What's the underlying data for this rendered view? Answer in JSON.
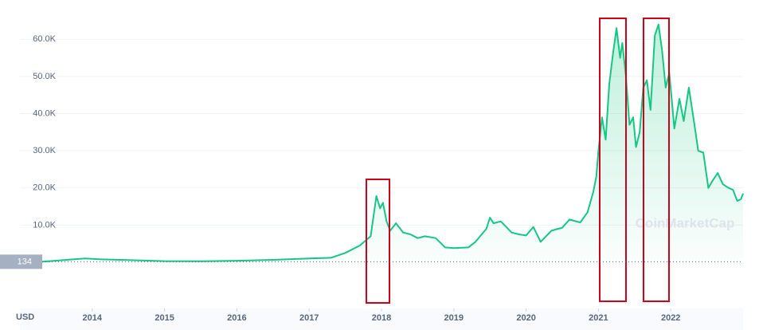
{
  "chart_data": {
    "type": "line",
    "color": "#16c784",
    "grid": true,
    "y_unit_label": "USD",
    "watermark": "CoinMarketCap",
    "start_price": 134,
    "xlim": [
      2013,
      2023
    ],
    "xticks": [
      2014,
      2015,
      2016,
      2017,
      2018,
      2019,
      2020,
      2021,
      2022
    ],
    "ylim": [
      0,
      65000
    ],
    "yticks": [
      {
        "value": 10000,
        "label": "10.0K"
      },
      {
        "value": 20000,
        "label": "20.0K"
      },
      {
        "value": 30000,
        "label": "30.0K"
      },
      {
        "value": 40000,
        "label": "40.0K"
      },
      {
        "value": 50000,
        "label": "50.0K"
      },
      {
        "value": 60000,
        "label": "60.0K"
      }
    ],
    "x": [
      2013.0,
      2013.3,
      2013.9,
      2014.1,
      2014.5,
      2015.0,
      2015.5,
      2016.0,
      2016.5,
      2017.0,
      2017.3,
      2017.5,
      2017.7,
      2017.85,
      2017.93,
      2017.98,
      2018.02,
      2018.07,
      2018.12,
      2018.2,
      2018.3,
      2018.4,
      2018.5,
      2018.6,
      2018.75,
      2018.88,
      2019.0,
      2019.2,
      2019.3,
      2019.45,
      2019.5,
      2019.55,
      2019.65,
      2019.8,
      2019.9,
      2020.0,
      2020.1,
      2020.2,
      2020.35,
      2020.5,
      2020.6,
      2020.75,
      2020.85,
      2020.93,
      2020.97,
      2021.0,
      2021.05,
      2021.1,
      2021.15,
      2021.2,
      2021.25,
      2021.3,
      2021.33,
      2021.38,
      2021.43,
      2021.48,
      2021.52,
      2021.57,
      2021.62,
      2021.67,
      2021.72,
      2021.78,
      2021.83,
      2021.88,
      2021.93,
      2021.98,
      2022.05,
      2022.12,
      2022.18,
      2022.25,
      2022.32,
      2022.38,
      2022.45,
      2022.52,
      2022.58,
      2022.65,
      2022.72,
      2022.8,
      2022.86,
      2022.92,
      2022.97,
      2023.0
    ],
    "values": [
      134,
      120,
      1000,
      800,
      600,
      300,
      250,
      400,
      650,
      1000,
      1200,
      2500,
      4500,
      7000,
      17800,
      14500,
      16000,
      11000,
      8500,
      10500,
      8000,
      7500,
      6500,
      7000,
      6500,
      4000,
      3800,
      4000,
      5500,
      9000,
      12000,
      10500,
      11000,
      8000,
      7500,
      7200,
      9500,
      5500,
      8500,
      9300,
      11500,
      10700,
      13500,
      19000,
      23000,
      30000,
      39000,
      33000,
      48000,
      56000,
      63000,
      55000,
      59000,
      50000,
      37000,
      39000,
      31000,
      35000,
      47000,
      49000,
      41000,
      61000,
      64000,
      57000,
      47000,
      51000,
      36000,
      44000,
      38000,
      47000,
      38000,
      30000,
      29500,
      20000,
      22000,
      24000,
      21000,
      20000,
      19500,
      16500,
      17000,
      18500
    ]
  }
}
